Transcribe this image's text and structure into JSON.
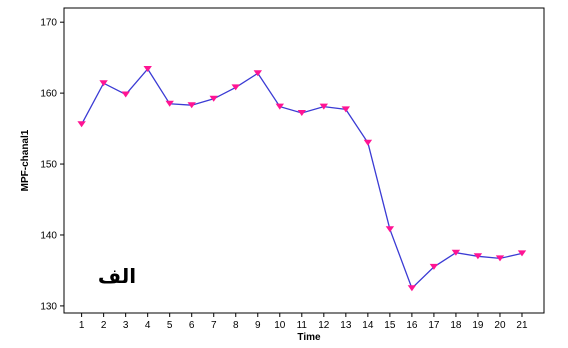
{
  "chart_data": {
    "type": "line",
    "title": "",
    "xlabel": "Time",
    "ylabel": "MPF-chanal1",
    "x": [
      1,
      2,
      3,
      4,
      5,
      6,
      7,
      8,
      9,
      10,
      11,
      12,
      13,
      14,
      15,
      16,
      17,
      18,
      19,
      20,
      21
    ],
    "x_tick_labels": [
      "1",
      "2",
      "3",
      "4",
      "5",
      "6",
      "7",
      "8",
      "9",
      "10",
      "11",
      "12",
      "13",
      "14",
      "15",
      "16",
      "17",
      "18",
      "19",
      "20",
      "21"
    ],
    "series": [
      {
        "values": [
          155.6,
          161.4,
          159.8,
          163.4,
          158.5,
          158.3,
          159.2,
          160.8,
          162.8,
          158.1,
          157.2,
          158.1,
          157.7,
          153.0,
          140.8,
          132.5,
          135.5,
          137.5,
          137.0,
          136.7,
          137.4
        ],
        "line_color": "#3b3bd4",
        "marker_color": "#ff1493",
        "marker": "triangle-down"
      }
    ],
    "ylim": [
      129,
      172
    ],
    "y_ticks": [
      130,
      140,
      150,
      160,
      170
    ],
    "grid": false,
    "annotation": "الف"
  }
}
